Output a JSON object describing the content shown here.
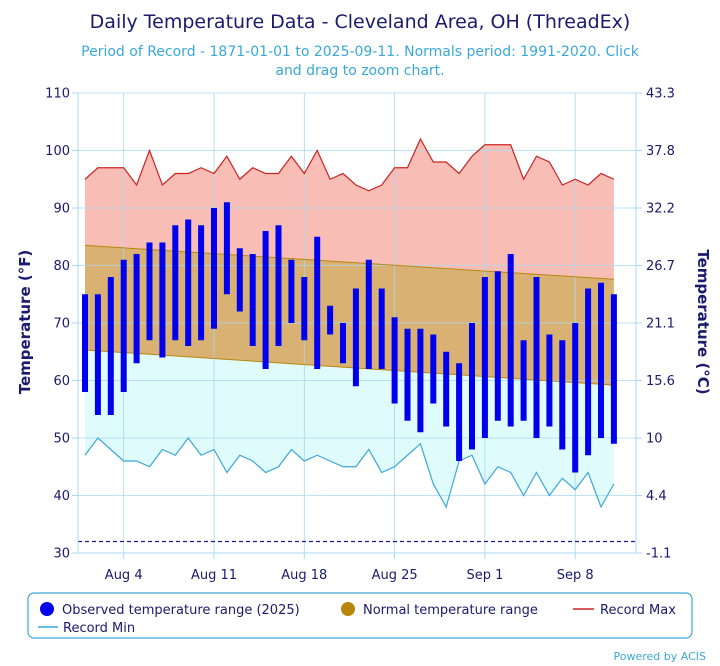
{
  "chart_data": {
    "type": "bar",
    "title": "Daily Temperature Data - Cleveland Area, OH (ThreadEx)",
    "subtitle_line1": "Period of Record - 1871-01-01 to 2025-09-11. Normals period: 1991-2020. Click",
    "subtitle_line2": "and drag to zoom chart.",
    "ylabel_left": "Temperature (°F)",
    "ylabel_right": "Temperature (°C)",
    "ylim": [
      30,
      110
    ],
    "yticks_left": [
      30,
      40,
      50,
      60,
      70,
      80,
      90,
      100,
      110
    ],
    "yticks_right": [
      "-1.1",
      "4.4",
      "10",
      "15.6",
      "21.1",
      "26.7",
      "32.2",
      "37.8",
      "43.3"
    ],
    "freezing_line": 32,
    "x_start_day": 1,
    "x_end_day": 45,
    "xticks": [
      {
        "day": 4,
        "label": "Aug 4"
      },
      {
        "day": 11,
        "label": "Aug 11"
      },
      {
        "day": 18,
        "label": "Aug 18"
      },
      {
        "day": 25,
        "label": "Aug 25"
      },
      {
        "day": 32,
        "label": "Sep 1"
      },
      {
        "day": 39,
        "label": "Sep 8"
      }
    ],
    "observed": [
      {
        "day": 1,
        "min": 58,
        "max": 75
      },
      {
        "day": 2,
        "min": 54,
        "max": 75
      },
      {
        "day": 3,
        "min": 54,
        "max": 78
      },
      {
        "day": 4,
        "min": 58,
        "max": 81
      },
      {
        "day": 5,
        "min": 63,
        "max": 82
      },
      {
        "day": 6,
        "min": 67,
        "max": 84
      },
      {
        "day": 7,
        "min": 64,
        "max": 84
      },
      {
        "day": 8,
        "min": 67,
        "max": 87
      },
      {
        "day": 9,
        "min": 66,
        "max": 88
      },
      {
        "day": 10,
        "min": 67,
        "max": 87
      },
      {
        "day": 11,
        "min": 69,
        "max": 90
      },
      {
        "day": 12,
        "min": 75,
        "max": 91
      },
      {
        "day": 13,
        "min": 72,
        "max": 83
      },
      {
        "day": 14,
        "min": 66,
        "max": 82
      },
      {
        "day": 15,
        "min": 62,
        "max": 86
      },
      {
        "day": 16,
        "min": 66,
        "max": 87
      },
      {
        "day": 17,
        "min": 70,
        "max": 81
      },
      {
        "day": 18,
        "min": 67,
        "max": 78
      },
      {
        "day": 19,
        "min": 62,
        "max": 85
      },
      {
        "day": 20,
        "min": 68,
        "max": 73
      },
      {
        "day": 21,
        "min": 63,
        "max": 70
      },
      {
        "day": 22,
        "min": 59,
        "max": 76
      },
      {
        "day": 23,
        "min": 62,
        "max": 81
      },
      {
        "day": 24,
        "min": 62,
        "max": 76
      },
      {
        "day": 25,
        "min": 56,
        "max": 71
      },
      {
        "day": 26,
        "min": 53,
        "max": 69
      },
      {
        "day": 27,
        "min": 51,
        "max": 69
      },
      {
        "day": 28,
        "min": 56,
        "max": 68
      },
      {
        "day": 29,
        "min": 52,
        "max": 65
      },
      {
        "day": 30,
        "min": 46,
        "max": 63
      },
      {
        "day": 31,
        "min": 48,
        "max": 70
      },
      {
        "day": 32,
        "min": 50,
        "max": 78
      },
      {
        "day": 33,
        "min": 53,
        "max": 79
      },
      {
        "day": 34,
        "min": 52,
        "max": 82
      },
      {
        "day": 35,
        "min": 53,
        "max": 67
      },
      {
        "day": 36,
        "min": 50,
        "max": 78
      },
      {
        "day": 37,
        "min": 52,
        "max": 68
      },
      {
        "day": 38,
        "min": 48,
        "max": 67
      },
      {
        "day": 39,
        "min": 44,
        "max": 70
      },
      {
        "day": 40,
        "min": 47,
        "max": 76
      },
      {
        "day": 41,
        "min": 50,
        "max": 77
      },
      {
        "day": 42,
        "min": 49,
        "max": 75
      }
    ],
    "normal_high": {
      "start": 83.5,
      "end": 77.6
    },
    "normal_low": {
      "start": 65.3,
      "end": 59.2
    },
    "record_max": [
      95,
      97,
      97,
      97,
      94,
      100,
      94,
      96,
      96,
      97,
      96,
      99,
      95,
      97,
      96,
      96,
      99,
      96,
      100,
      95,
      96,
      94,
      93,
      94,
      97,
      97,
      102,
      98,
      98,
      96,
      99,
      101,
      101,
      101,
      95,
      99,
      98,
      94,
      95,
      94,
      96,
      95
    ],
    "record_min": [
      47,
      50,
      48,
      46,
      46,
      45,
      48,
      47,
      50,
      47,
      48,
      44,
      47,
      46,
      44,
      45,
      48,
      46,
      47,
      46,
      45,
      45,
      48,
      44,
      45,
      47,
      49,
      42,
      38,
      46,
      47,
      42,
      45,
      44,
      40,
      44,
      40,
      43,
      41,
      44,
      38,
      42
    ],
    "legend": [
      {
        "label": "Observed temperature range (2025)",
        "color": "#0000ee"
      },
      {
        "label": "Normal temperature range",
        "color": "#b8860b"
      },
      {
        "label": "Record Max",
        "color": "#cc2222"
      },
      {
        "label": "Record Min",
        "color": "#3aa8d8"
      }
    ],
    "credit": "Powered by ACIS"
  },
  "colors": {
    "observed": "#0000ee",
    "normal_fill": "#d9b273",
    "normal_line": "#b8860b",
    "record_max_fill": "#f8beb6",
    "record_max_line": "#cc2222",
    "record_min_fill": "#e0fbfb",
    "record_min_line": "#3aa8d8",
    "grid": "#a8d8f0",
    "text": "#1a1a6e",
    "freeze": "#1a1a8e"
  }
}
